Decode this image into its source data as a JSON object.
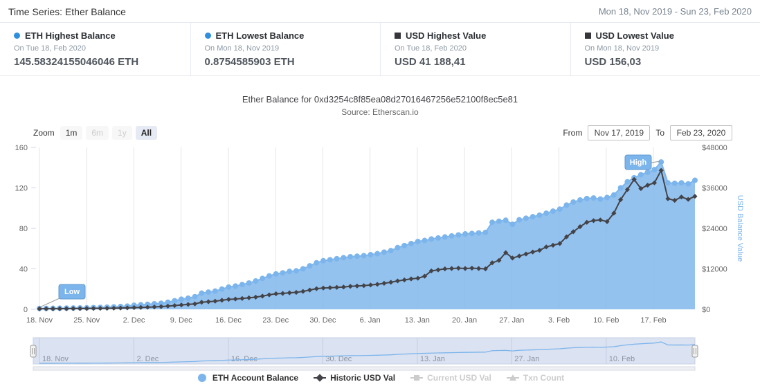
{
  "header": {
    "title": "Time Series: Ether Balance",
    "date_range": "Mon 18, Nov 2019 - Sun 23, Feb 2020"
  },
  "stats": [
    {
      "marker": "circle",
      "color": "#2f8fdd",
      "label": "ETH Highest Balance",
      "date": "On Tue 18, Feb 2020",
      "value": "145.58324155046046 ETH"
    },
    {
      "marker": "circle",
      "color": "#2f8fdd",
      "label": "ETH Lowest Balance",
      "date": "On Mon 18, Nov 2019",
      "value": "0.8754585903 ETH"
    },
    {
      "marker": "square",
      "color": "#35353a",
      "label": "USD Highest Value",
      "date": "On Tue 18, Feb 2020",
      "value": "USD 41 188,41"
    },
    {
      "marker": "square",
      "color": "#35353a",
      "label": "USD Lowest Value",
      "date": "On Mon 18, Nov 2019",
      "value": "USD 156,03"
    }
  ],
  "chart": {
    "title": "Ether Balance for 0xd3254c8f85ea08d27016467256e52100f8ec5e81",
    "subtitle": "Source: Etherscan.io",
    "zoom_label": "Zoom",
    "zoom_buttons": [
      {
        "label": "1m",
        "state": "normal"
      },
      {
        "label": "6m",
        "state": "disabled"
      },
      {
        "label": "1y",
        "state": "disabled"
      },
      {
        "label": "All",
        "state": "selected"
      }
    ],
    "from_label": "From",
    "from_value": "Nov 17, 2019",
    "to_label": "To",
    "to_value": "Feb 23, 2020"
  },
  "chart_data": {
    "type": "area",
    "x_start": "18. Nov 2019",
    "x_end": "23. Feb 2020",
    "x_interval": "daily",
    "x_ticks": [
      "18. Nov",
      "25. Nov",
      "2. Dec",
      "9. Dec",
      "16. Dec",
      "23. Dec",
      "30. Dec",
      "6. Jan",
      "13. Jan",
      "20. Jan",
      "27. Jan",
      "3. Feb",
      "10. Feb",
      "17. Feb"
    ],
    "y_left": {
      "ticks": [
        0,
        40,
        80,
        120,
        160
      ],
      "max": 160
    },
    "y_right": {
      "ticks": [
        "$0",
        "$12000",
        "$24000",
        "$36000",
        "$48000"
      ],
      "max": 48000,
      "title": "USD Balance Value",
      "title_color": "#7cb5ec"
    },
    "series": [
      {
        "name": "ETH Account Balance",
        "type": "area",
        "axis": "left",
        "color": "#7cb5ec",
        "values": [
          0.88,
          0.95,
          1.0,
          1.1,
          1.2,
          1.3,
          1.4,
          1.5,
          1.7,
          1.9,
          2.1,
          2.4,
          2.8,
          3.2,
          4.0,
          4.5,
          5.0,
          5.5,
          6.0,
          7.0,
          8.5,
          10.0,
          11.0,
          12.5,
          16.0,
          17.0,
          18.0,
          20.0,
          22.0,
          23.0,
          24.5,
          26.0,
          28.0,
          30.5,
          33.0,
          35.0,
          36.0,
          37.5,
          38.0,
          40.0,
          43.0,
          46.0,
          48.0,
          49.0,
          50.0,
          51.0,
          52.0,
          52.5,
          53.0,
          54.0,
          55.0,
          56.5,
          58.0,
          61.0,
          63.0,
          65.0,
          67.0,
          68.0,
          69.5,
          70.5,
          71.5,
          72.5,
          73.5,
          74.5,
          75.0,
          75.5,
          76.0,
          86.0,
          87.0,
          88.0,
          84.0,
          88.5,
          90.0,
          91.5,
          93.0,
          95.0,
          97.0,
          99.0,
          103.0,
          106.0,
          108.0,
          109.5,
          110.0,
          109.0,
          110.5,
          113.0,
          120.0,
          126.0,
          130.0,
          133.0,
          135.5,
          138.0,
          145.58,
          125.0,
          124.5,
          125.0,
          124.0,
          127.5
        ]
      },
      {
        "name": "Historic USD Val",
        "type": "line",
        "axis": "right",
        "color": "#434348",
        "values": [
          156,
          170,
          180,
          190,
          205,
          220,
          240,
          255,
          270,
          290,
          315,
          345,
          385,
          430,
          510,
          570,
          630,
          710,
          810,
          960,
          1120,
          1300,
          1450,
          1620,
          2100,
          2260,
          2420,
          2700,
          2950,
          3060,
          3220,
          3420,
          3620,
          3920,
          4300,
          4620,
          4720,
          4900,
          5020,
          5320,
          5720,
          6120,
          6320,
          6420,
          6520,
          6620,
          6820,
          6920,
          7020,
          7220,
          7420,
          7720,
          8020,
          8420,
          8720,
          9020,
          9220,
          9820,
          11400,
          11700,
          12000,
          12100,
          12200,
          12100,
          12200,
          12100,
          12000,
          13800,
          14500,
          16800,
          15200,
          15800,
          16400,
          17000,
          17500,
          18500,
          19000,
          19500,
          21500,
          23000,
          24500,
          25800,
          26300,
          26500,
          26000,
          28500,
          32500,
          35500,
          38500,
          35800,
          36800,
          37500,
          41188,
          32800,
          32300,
          33300,
          32600,
          33500
        ]
      }
    ],
    "flags": [
      {
        "label": "Low",
        "index": 0
      },
      {
        "label": "High",
        "index": 92
      }
    ],
    "navigator_labels": [
      "18. Nov",
      "2. Dec",
      "16. Dec",
      "30. Dec",
      "13. Jan",
      "27. Jan",
      "10. Feb"
    ],
    "legend_position": "bottom"
  },
  "legend": [
    {
      "label": "ETH Account Balance",
      "marker": "circle",
      "color": "#7cb5ec",
      "active": true
    },
    {
      "label": "Historic USD Val",
      "marker": "diamond",
      "color": "#434348",
      "active": true
    },
    {
      "label": "Current USD Val",
      "marker": "square",
      "color": "#cccccc",
      "active": false
    },
    {
      "label": "Txn Count",
      "marker": "triangle",
      "color": "#cccccc",
      "active": false
    }
  ]
}
